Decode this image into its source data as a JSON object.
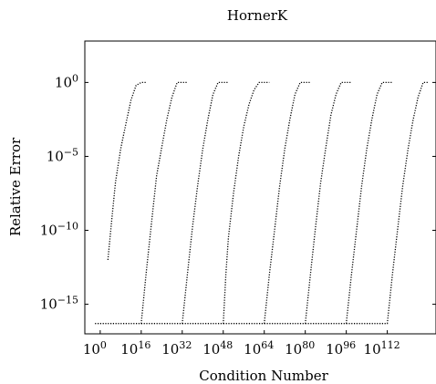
{
  "chart_data": {
    "type": "line",
    "title": "HornerK",
    "xlabel": "Condition Number",
    "ylabel": "Relative Error",
    "x_scale": "log10",
    "y_scale": "log10",
    "x_ticks": [
      {
        "base": "10",
        "exp": "0",
        "value": 1.0
      },
      {
        "base": "10",
        "exp": "16",
        "value": 1e+16
      },
      {
        "base": "10",
        "exp": "32",
        "value": 1e+32
      },
      {
        "base": "10",
        "exp": "48",
        "value": 1e+48
      },
      {
        "base": "10",
        "exp": "64",
        "value": 1e+64
      },
      {
        "base": "10",
        "exp": "80",
        "value": 1e+80
      },
      {
        "base": "10",
        "exp": "96",
        "value": 1e+96
      },
      {
        "base": "10",
        "exp": "112",
        "value": 1e+112
      }
    ],
    "y_ticks": [
      {
        "base": "10",
        "exp": "0",
        "value": 1.0
      },
      {
        "base": "10",
        "exp": "−5",
        "value": 1e-05
      },
      {
        "base": "10",
        "exp": "−10",
        "value": 1e-10
      },
      {
        "base": "10",
        "exp": "−15",
        "value": 1e-15
      }
    ],
    "xlim_log10": [
      -6,
      131
    ],
    "ylim_log10": [
      -17,
      2.8
    ],
    "grid": false,
    "legend": "none",
    "line_style": "dotted",
    "line_color": "#000000",
    "series": [
      {
        "x_log10": [
          3,
          4.5,
          6,
          8,
          10,
          12,
          14,
          16,
          18
        ],
        "y_log10": [
          -12,
          -9.3,
          -6.7,
          -4.5,
          -2.8,
          -1.2,
          -0.2,
          0,
          0
        ]
      },
      {
        "x_log10": [
          -2,
          4,
          10,
          16,
          18,
          20,
          22,
          24,
          26,
          28,
          30,
          34
        ],
        "y_log10": [
          -16.3,
          -16.3,
          -16.3,
          -16.3,
          -12.8,
          -9.5,
          -6.3,
          -4.4,
          -2.5,
          -1,
          0,
          0
        ]
      },
      {
        "x_log10": [
          16,
          24,
          32,
          34,
          36,
          38,
          40,
          42,
          44,
          46,
          50
        ],
        "y_log10": [
          -16.3,
          -16.3,
          -16.3,
          -13,
          -9.8,
          -7,
          -4.5,
          -2.5,
          -0.8,
          0,
          0
        ]
      },
      {
        "x_log10": [
          32,
          40,
          48,
          49,
          50,
          52,
          54,
          56,
          58,
          60,
          62,
          66
        ],
        "y_log10": [
          -16.3,
          -16.3,
          -16.3,
          -13,
          -10.5,
          -7.5,
          -5,
          -3,
          -1.5,
          -0.5,
          0,
          0
        ]
      },
      {
        "x_log10": [
          48,
          56,
          64,
          66,
          68,
          70,
          72,
          74,
          76,
          78,
          82
        ],
        "y_log10": [
          -16.3,
          -16.3,
          -16.3,
          -13,
          -10,
          -7,
          -4.5,
          -2.5,
          -0.8,
          0,
          0
        ]
      },
      {
        "x_log10": [
          64,
          72,
          80,
          82,
          84,
          86,
          88,
          90,
          92,
          94,
          98
        ],
        "y_log10": [
          -16.3,
          -16.3,
          -16.3,
          -13,
          -9.8,
          -6.8,
          -4.4,
          -2.2,
          -0.8,
          0,
          0
        ]
      },
      {
        "x_log10": [
          80,
          88,
          96,
          98,
          100,
          102,
          104,
          106,
          108,
          110,
          114
        ],
        "y_log10": [
          -16.3,
          -16.3,
          -16.3,
          -13,
          -10,
          -7,
          -4.5,
          -2.5,
          -0.8,
          0,
          0
        ]
      },
      {
        "x_log10": [
          96,
          104,
          112,
          114,
          116,
          118,
          120,
          122,
          124,
          126,
          128
        ],
        "y_log10": [
          -16.3,
          -16.3,
          -16.3,
          -13,
          -10,
          -7,
          -4.6,
          -2.6,
          -1,
          0,
          0
        ]
      }
    ]
  }
}
